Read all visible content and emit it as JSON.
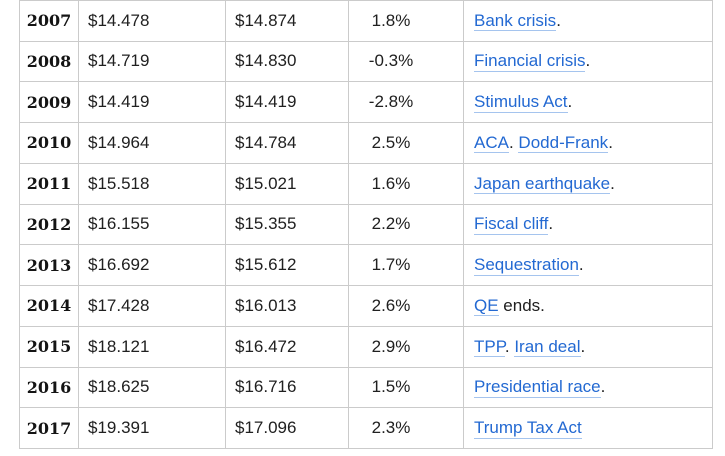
{
  "colors": {
    "link_blue": "#2369d2",
    "link_underline": "#a5c4ee",
    "border_gray": "#cbcbcb",
    "text_dark": "#202020",
    "background": "#ffffff"
  },
  "chart_data": {
    "type": "table",
    "rows": [
      {
        "year": "2007",
        "gdp_nominal_trillions": "$14.478",
        "gdp_real_trillions": "$14.874",
        "growth_rate": "1.8%",
        "events": [
          {
            "text": "Bank crisis",
            "link": true
          },
          {
            "text": ".",
            "link": false
          }
        ]
      },
      {
        "year": "2008",
        "gdp_nominal_trillions": "$14.719",
        "gdp_real_trillions": "$14.830",
        "growth_rate": "-0.3%",
        "events": [
          {
            "text": "Financial crisis",
            "link": true
          },
          {
            "text": ".",
            "link": false
          }
        ]
      },
      {
        "year": "2009",
        "gdp_nominal_trillions": "$14.419",
        "gdp_real_trillions": "$14.419",
        "growth_rate": "-2.8%",
        "events": [
          {
            "text": "Stimulus Act",
            "link": true
          },
          {
            "text": ".",
            "link": false
          }
        ]
      },
      {
        "year": "2010",
        "gdp_nominal_trillions": "$14.964",
        "gdp_real_trillions": "$14.784",
        "growth_rate": "2.5%",
        "events": [
          {
            "text": "ACA",
            "link": true
          },
          {
            "text": ". ",
            "link": false
          },
          {
            "text": "Dodd-Frank",
            "link": true
          },
          {
            "text": ".",
            "link": false
          }
        ]
      },
      {
        "year": "2011",
        "gdp_nominal_trillions": "$15.518",
        "gdp_real_trillions": "$15.021",
        "growth_rate": "1.6%",
        "events": [
          {
            "text": "Japan earthquake",
            "link": true
          },
          {
            "text": ".",
            "link": false
          }
        ]
      },
      {
        "year": "2012",
        "gdp_nominal_trillions": "$16.155",
        "gdp_real_trillions": "$15.355",
        "growth_rate": "2.2%",
        "events": [
          {
            "text": "Fiscal cliff",
            "link": true
          },
          {
            "text": ".",
            "link": false
          }
        ]
      },
      {
        "year": "2013",
        "gdp_nominal_trillions": "$16.692",
        "gdp_real_trillions": "$15.612",
        "growth_rate": "1.7%",
        "events": [
          {
            "text": "Sequestration",
            "link": true
          },
          {
            "text": ".",
            "link": false
          }
        ]
      },
      {
        "year": "2014",
        "gdp_nominal_trillions": "$17.428",
        "gdp_real_trillions": "$16.013",
        "growth_rate": "2.6%",
        "events": [
          {
            "text": "QE",
            "link": true
          },
          {
            "text": " ends.",
            "link": false
          }
        ]
      },
      {
        "year": "2015",
        "gdp_nominal_trillions": "$18.121",
        "gdp_real_trillions": "$16.472",
        "growth_rate": "2.9%",
        "events": [
          {
            "text": "TPP",
            "link": true
          },
          {
            "text": ". ",
            "link": false
          },
          {
            "text": "Iran deal",
            "link": true
          },
          {
            "text": ".",
            "link": false
          }
        ]
      },
      {
        "year": "2016",
        "gdp_nominal_trillions": "$18.625",
        "gdp_real_trillions": "$16.716",
        "growth_rate": "1.5%",
        "events": [
          {
            "text": "Presidential race",
            "link": true
          },
          {
            "text": ".",
            "link": false
          }
        ]
      },
      {
        "year": "2017",
        "gdp_nominal_trillions": "$19.391",
        "gdp_real_trillions": "$17.096",
        "growth_rate": "2.3%",
        "events": [
          {
            "text": "Trump Tax Act",
            "link": true
          }
        ]
      }
    ]
  }
}
